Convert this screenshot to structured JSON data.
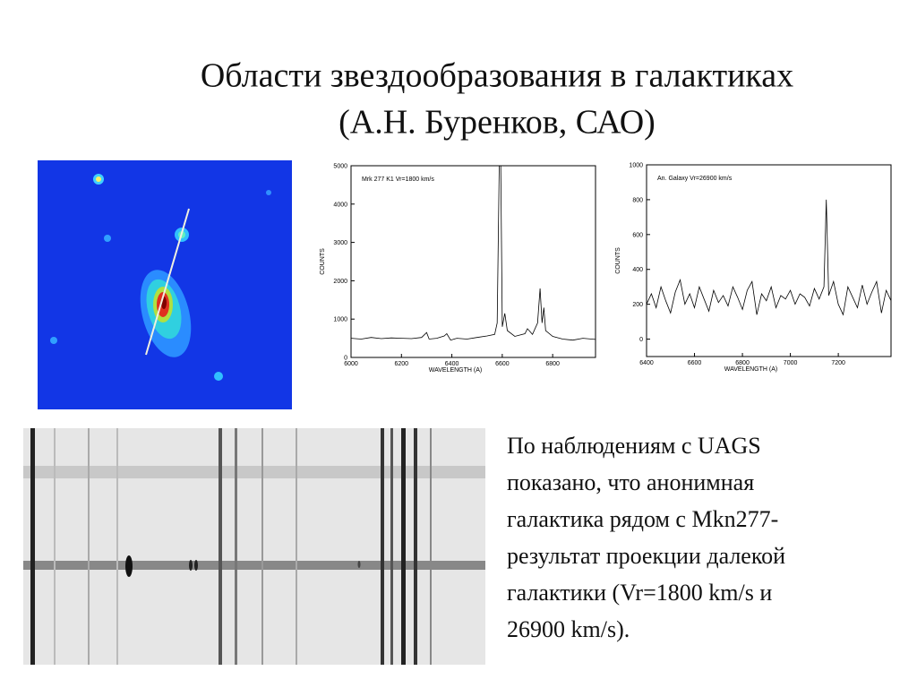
{
  "title": [
    "Области звездообразования в галактиках",
    "(А.Н. Буренков, САО)"
  ],
  "body": [
    "По наблюдениям с UAGS",
    "показано, что анонимная",
    "галактика рядом с Mkn277-",
    "результат проекции далекой",
    "галактики (Vr=1800 km/s и",
    "26900 km/s)."
  ],
  "chart_data": [
    {
      "type": "line",
      "annotation": "Mrk 277 K1 Vr=1800 km/s",
      "xlabel": "WAVELENGTH (A)",
      "ylabel": "COUNTS",
      "color": "#000000",
      "x": [
        6000,
        6040,
        6080,
        6120,
        6160,
        6200,
        6240,
        6280,
        6300,
        6310,
        6340,
        6370,
        6380,
        6395,
        6420,
        6460,
        6500,
        6540,
        6570,
        6580,
        6588,
        6594,
        6600,
        6610,
        6620,
        6650,
        6690,
        6700,
        6720,
        6740,
        6750,
        6758,
        6765,
        6772,
        6800,
        6840,
        6880,
        6920,
        6970
      ],
      "values": [
        500,
        480,
        520,
        490,
        510,
        500,
        490,
        520,
        650,
        480,
        500,
        560,
        620,
        450,
        500,
        480,
        520,
        560,
        600,
        900,
        5000,
        5000,
        800,
        1150,
        700,
        550,
        620,
        750,
        600,
        900,
        1800,
        900,
        1300,
        700,
        550,
        480,
        450,
        500,
        470
      ],
      "xlim": [
        6000,
        6970
      ],
      "ylim": [
        0,
        5000
      ],
      "xticks": [
        6000,
        6200,
        6400,
        6600,
        6800
      ],
      "yticks": [
        0,
        1000,
        2000,
        3000,
        4000,
        5000
      ]
    },
    {
      "type": "line",
      "annotation": "An. Galaxy Vr=26900 km/s",
      "xlabel": "WAVELENGTH (A)",
      "ylabel": "COUNTS",
      "color": "#000000",
      "x": [
        6400,
        6420,
        6440,
        6460,
        6480,
        6500,
        6520,
        6540,
        6560,
        6580,
        6600,
        6620,
        6640,
        6660,
        6680,
        6700,
        6720,
        6740,
        6760,
        6780,
        6800,
        6820,
        6840,
        6860,
        6880,
        6900,
        6920,
        6940,
        6960,
        6980,
        7000,
        7020,
        7040,
        7060,
        7080,
        7100,
        7120,
        7140,
        7150,
        7160,
        7180,
        7200,
        7220,
        7240,
        7260,
        7280,
        7300,
        7320,
        7340,
        7360,
        7380,
        7400,
        7420
      ],
      "values": [
        200,
        260,
        180,
        300,
        220,
        150,
        270,
        340,
        200,
        260,
        180,
        300,
        230,
        160,
        280,
        210,
        250,
        190,
        300,
        240,
        170,
        280,
        330,
        140,
        260,
        220,
        300,
        180,
        250,
        230,
        280,
        200,
        260,
        240,
        190,
        290,
        230,
        300,
        800,
        250,
        330,
        200,
        140,
        300,
        240,
        180,
        310,
        200,
        270,
        330,
        150,
        280,
        220
      ],
      "xlim": [
        6400,
        7420
      ],
      "ylim": [
        -100,
        1000
      ],
      "xticks": [
        6400,
        6600,
        6800,
        7000,
        7200
      ],
      "yticks": [
        0,
        200,
        400,
        600,
        800,
        1000
      ]
    }
  ]
}
